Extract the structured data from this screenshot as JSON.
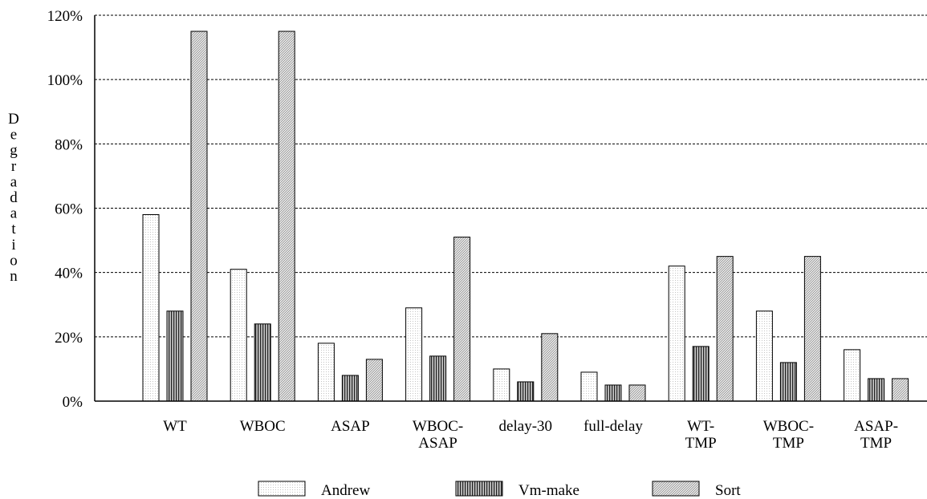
{
  "chart_data": {
    "type": "bar",
    "title": "",
    "xlabel": "",
    "ylabel": "Degradation",
    "ylim": [
      0,
      120
    ],
    "yticks": [
      "0%",
      "20%",
      "40%",
      "60%",
      "80%",
      "100%",
      "120%"
    ],
    "grid": true,
    "legend_position": "bottom",
    "categories": [
      [
        "WT"
      ],
      [
        "WBOC"
      ],
      [
        "ASAP"
      ],
      [
        "WBOC-",
        "ASAP"
      ],
      [
        "delay-30"
      ],
      [
        "full-delay"
      ],
      [
        "WT-",
        "TMP"
      ],
      [
        "WBOC-",
        "TMP"
      ],
      [
        "ASAP-",
        "TMP"
      ]
    ],
    "series": [
      {
        "name": "Andrew",
        "values": [
          58,
          41,
          18,
          29,
          10,
          9,
          42,
          28,
          16
        ]
      },
      {
        "name": "Vm-make",
        "values": [
          28,
          24,
          8,
          14,
          6,
          5,
          17,
          12,
          7
        ]
      },
      {
        "name": "Sort",
        "values": [
          115,
          115,
          13,
          51,
          21,
          5,
          45,
          45,
          7
        ]
      }
    ]
  }
}
